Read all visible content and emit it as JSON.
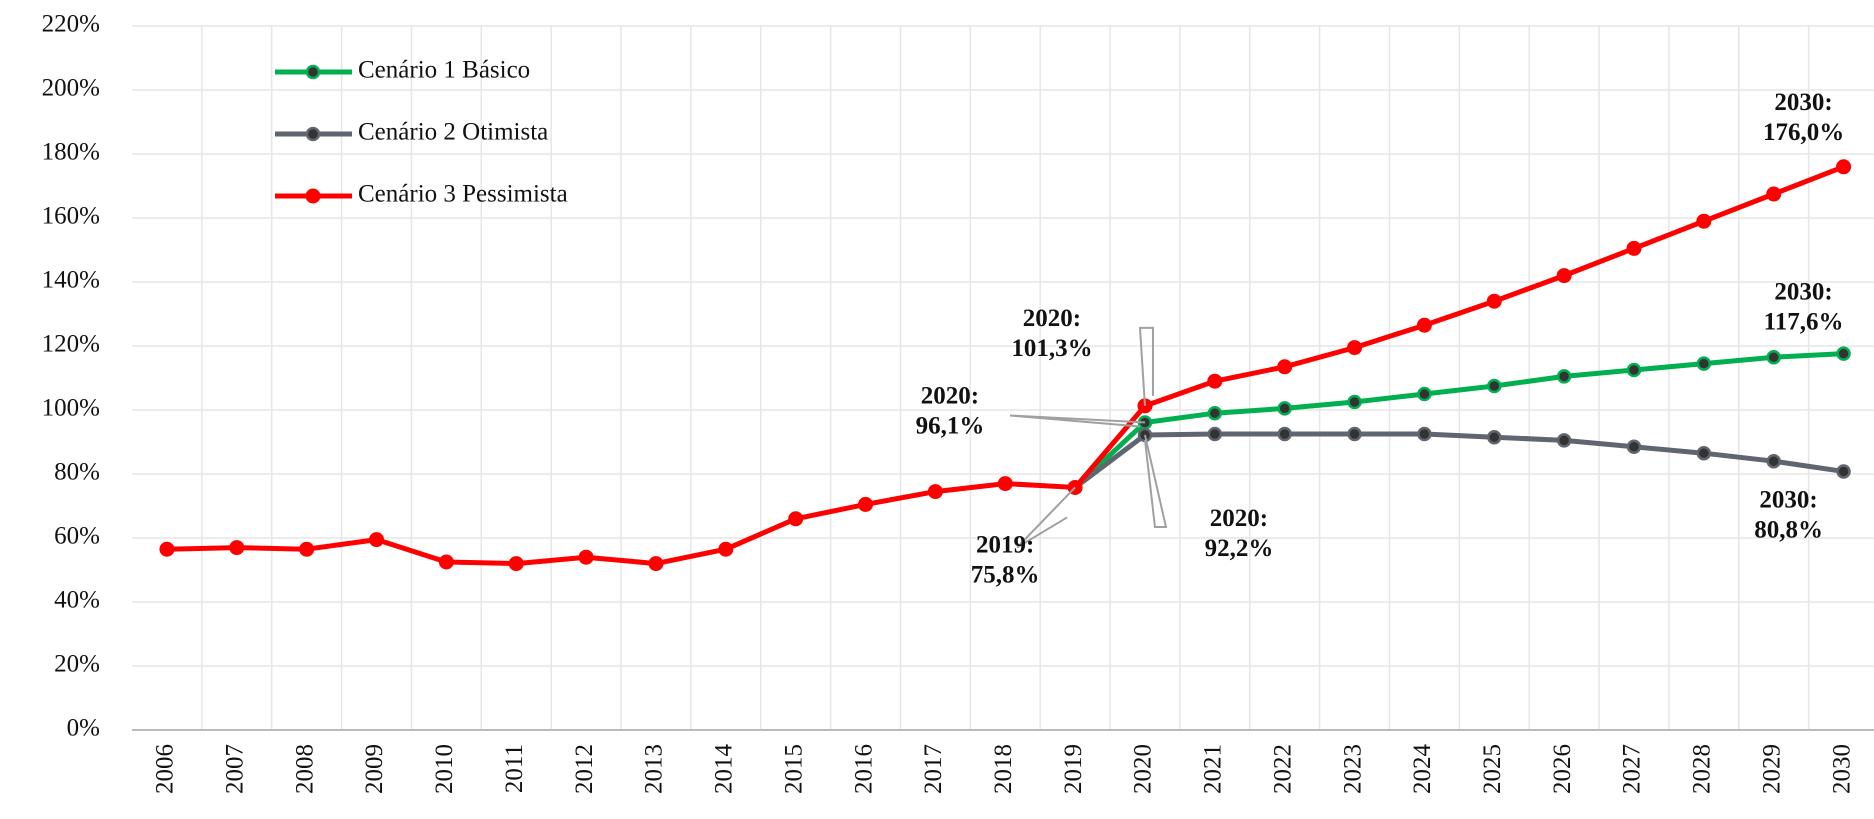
{
  "chart_data": {
    "type": "line",
    "categories": [
      "2006",
      "2007",
      "2008",
      "2009",
      "2010",
      "2011",
      "2012",
      "2013",
      "2014",
      "2015",
      "2016",
      "2017",
      "2018",
      "2019",
      "2020",
      "2021",
      "2022",
      "2023",
      "2024",
      "2025",
      "2026",
      "2027",
      "2028",
      "2029",
      "2030"
    ],
    "series": [
      {
        "name": "Cenário 1 Básico",
        "color": "#00b050",
        "values": [
          null,
          null,
          null,
          null,
          null,
          null,
          null,
          null,
          null,
          null,
          null,
          null,
          null,
          75.8,
          96.1,
          99,
          100.5,
          102.5,
          105,
          107.5,
          110.5,
          112.5,
          114.5,
          116.5,
          117.6
        ],
        "value_labels": [
          null,
          null,
          null,
          null,
          null,
          null,
          null,
          null,
          null,
          null,
          null,
          null,
          null,
          null,
          "2020: 96,1%",
          null,
          null,
          null,
          null,
          null,
          null,
          null,
          null,
          null,
          "2030: 117,6%"
        ]
      },
      {
        "name": "Cenário 2 Otimista",
        "color": "#5f6670",
        "values": [
          null,
          null,
          null,
          null,
          null,
          null,
          null,
          null,
          null,
          null,
          null,
          null,
          null,
          75.8,
          92.2,
          92.5,
          92.5,
          92.5,
          92.5,
          91.5,
          90.5,
          88.5,
          86.5,
          84,
          80.8
        ],
        "value_labels": [
          null,
          null,
          null,
          null,
          null,
          null,
          null,
          null,
          null,
          null,
          null,
          null,
          null,
          null,
          "2020: 92,2%",
          null,
          null,
          null,
          null,
          null,
          null,
          null,
          null,
          null,
          "2030: 80,8%"
        ]
      },
      {
        "name": "Cenário 3 Pessimista",
        "color": "#ff0000",
        "values": [
          56.5,
          57,
          56.5,
          59.5,
          52.5,
          52,
          54,
          52,
          56.5,
          66,
          70.5,
          74.5,
          77,
          75.8,
          101.3,
          109,
          113.5,
          119.5,
          126.5,
          134,
          142,
          150.5,
          159,
          167.5,
          176.0
        ],
        "value_labels": [
          null,
          null,
          null,
          null,
          null,
          null,
          null,
          null,
          null,
          null,
          null,
          null,
          null,
          "2019: 75,8%",
          "2020: 101,3%",
          null,
          null,
          null,
          null,
          null,
          null,
          null,
          null,
          null,
          "2030: 176,0%"
        ]
      }
    ],
    "ylim": [
      0,
      220
    ],
    "yticks": [
      {
        "value": 0,
        "label": "0%"
      },
      {
        "value": 20,
        "label": "20%"
      },
      {
        "value": 40,
        "label": "40%"
      },
      {
        "value": 60,
        "label": "60%"
      },
      {
        "value": 80,
        "label": "80%"
      },
      {
        "value": 100,
        "label": "100%"
      },
      {
        "value": 120,
        "label": "120%"
      },
      {
        "value": 140,
        "label": "140%"
      },
      {
        "value": 160,
        "label": "160%"
      },
      {
        "value": 180,
        "label": "180%"
      },
      {
        "value": 200,
        "label": "200%"
      },
      {
        "value": 220,
        "label": "220%"
      }
    ],
    "grid": true,
    "legend": "upper left"
  }
}
